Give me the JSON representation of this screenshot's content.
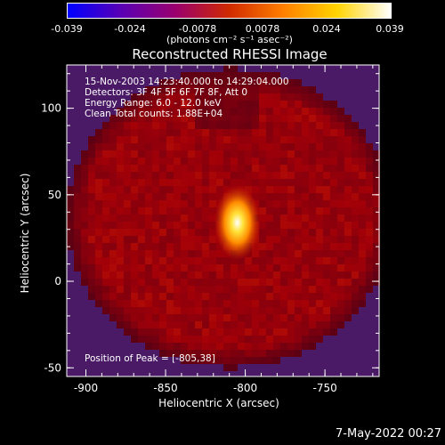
{
  "colorbar": {
    "ticks": [
      "-0.039",
      "-0.024",
      "-0.0078",
      "0.0078",
      "0.024",
      "0.039"
    ],
    "tick_values": [
      -0.039,
      -0.024,
      -0.0078,
      0.0078,
      0.024,
      0.039
    ],
    "unit": "(photons cm⁻² s⁻¹ asec⁻²)",
    "range": [
      -0.039,
      0.039
    ],
    "colormap": [
      "#0000ff",
      "#5a00b4",
      "#9a006e",
      "#d02a00",
      "#ff7f00",
      "#ffd400",
      "#ffffff"
    ]
  },
  "chart_data": {
    "type": "heatmap",
    "title": "Reconstructed RHESSI Image",
    "xlabel": "Heliocentric X (arcsec)",
    "ylabel": "Heliocentric Y (arcsec)",
    "xlim": [
      -912,
      -716
    ],
    "ylim": [
      -55,
      125
    ],
    "xticks": [
      -900,
      -850,
      -800,
      -750
    ],
    "xtick_labels": [
      "-900",
      "-850",
      "-800",
      "-750"
    ],
    "yticks": [
      -50,
      0,
      50,
      100
    ],
    "ytick_labels": [
      "-50",
      "0",
      "50",
      "100"
    ],
    "peak": {
      "x": -805,
      "y": 38
    },
    "annotations": [
      "15-Nov-2003 14:23:40.000 to 14:29:04.000",
      "Detectors: 3F 4F 5F 6F 7F 8F, Att 0",
      "Energy Range: 6.0 - 12.0 keV",
      "Clean     Total counts: 1.88E+04"
    ],
    "peak_label": "Position of Peak = [-805,38]",
    "background_color": "#4a1a66"
  },
  "timestamp": "7-May-2022 00:27"
}
